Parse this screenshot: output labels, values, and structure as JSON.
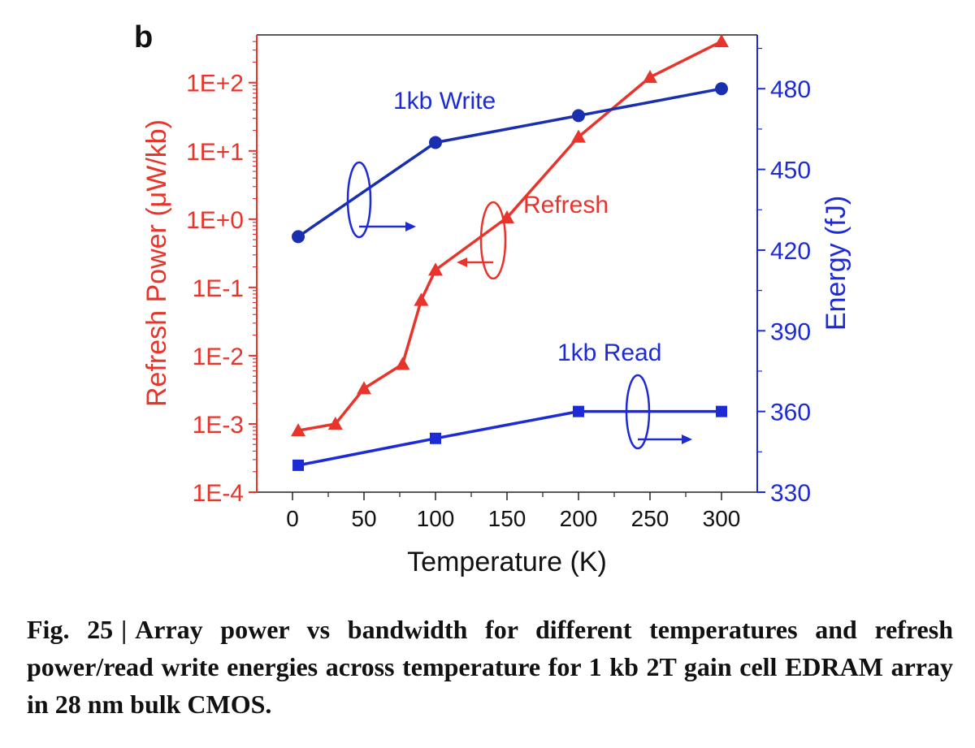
{
  "panel_label": "b",
  "chart_data": {
    "type": "line",
    "x_axis": {
      "label": "Temperature (K)",
      "ticks": [
        0,
        50,
        100,
        150,
        200,
        250,
        300
      ],
      "tick_labels": [
        "0",
        "50",
        "100",
        "150",
        "200",
        "250",
        "300"
      ],
      "range": [
        -25,
        325
      ]
    },
    "left_axis": {
      "label": "Refresh Power (μW/kb)",
      "scale": "log",
      "ticks": [
        0.0001,
        0.001,
        0.01,
        0.1,
        1,
        10,
        100
      ],
      "tick_labels": [
        "1E-4",
        "1E-3",
        "1E-2",
        "1E-1",
        "1E+0",
        "1E+1",
        "1E+2"
      ],
      "range": [
        0.0001,
        500
      ],
      "color": "#e8352c"
    },
    "right_axis": {
      "label": "Energy (fJ)",
      "scale": "linear",
      "ticks": [
        330,
        360,
        390,
        420,
        450,
        480
      ],
      "tick_labels": [
        "330",
        "360",
        "390",
        "420",
        "450",
        "480"
      ],
      "range": [
        330,
        500
      ],
      "color": "#1c2bd6"
    },
    "series": [
      {
        "name": "Refresh",
        "axis": "left",
        "marker": "triangle",
        "color": "#e8352c",
        "x": [
          4,
          30,
          50,
          77,
          90,
          100,
          150,
          200,
          250,
          300
        ],
        "y": [
          0.0008,
          0.001,
          0.0033,
          0.0075,
          0.065,
          0.18,
          1.05,
          16,
          120,
          400
        ]
      },
      {
        "name": "1kb Write",
        "axis": "right",
        "marker": "circle",
        "color": "#1a2fb0",
        "x": [
          4,
          100,
          200,
          300
        ],
        "y": [
          425,
          460,
          470,
          480
        ]
      },
      {
        "name": "1kb Read",
        "axis": "right",
        "marker": "square",
        "color": "#1c2bd6",
        "x": [
          4,
          100,
          200,
          300
        ],
        "y": [
          340,
          350,
          360,
          360
        ]
      }
    ],
    "annotations": {
      "write_label": "1kb Write",
      "refresh_label": "Refresh",
      "read_label": "1kb Read"
    }
  },
  "caption": {
    "label": "Fig. 25",
    "separator": "|",
    "text": "Array power vs bandwidth for different temperatures and refresh power/read write energies across temperature for 1 kb 2T gain cell EDRAM array in 28 nm bulk CMOS."
  }
}
